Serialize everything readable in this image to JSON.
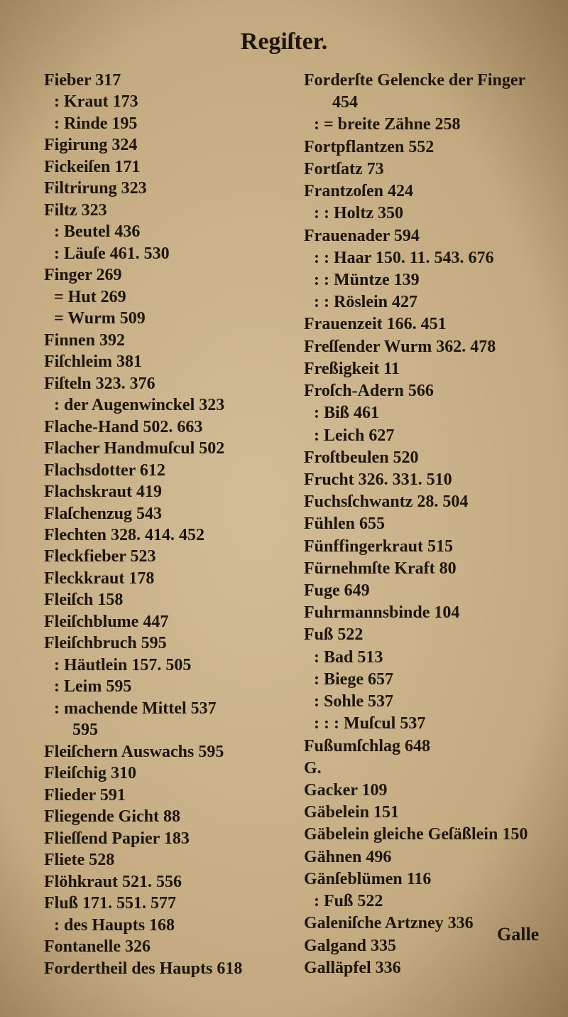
{
  "header": {
    "title": "Regiſter."
  },
  "columns": [
    {
      "entries": [
        "Fieber 317",
        ": Kraut 173",
        ": Rinde 195",
        "Figirung 324",
        "Fickeiſen 171",
        "Filtrirung 323",
        "Filtz 323",
        ": Beutel 436",
        ": Läuſe 461. 530",
        "Finger 269",
        "= Hut 269",
        "= Wurm 509",
        "Finnen 392",
        "Fiſchleim 381",
        "Fiſteln 323. 376",
        ": der Augenwinckel 323",
        "Flache-Hand 502. 663",
        "Flacher Handmuſcul 502",
        "Flachsdotter 612",
        "Flachskraut 419",
        "Flaſchenzug 543",
        "Flechten 328. 414. 452",
        "Fleckfieber 523",
        "Fleckkraut 178",
        "Fleiſch 158",
        "Fleiſchblume 447",
        "Fleiſchbruch 595",
        ": Häutlein 157. 505",
        ": Leim 595",
        ": machende Mittel 537",
        "595",
        "Fleiſchern Auswachs 595",
        "Fleiſchig 310",
        "Flieder 591",
        "Fliegende Gicht 88",
        "Flieſſend Papier 183",
        "Fliete 528",
        "Flöhkraut 521. 556",
        "Fluß 171. 551. 577",
        ": des Haupts 168",
        "Fontanelle 326",
        "Fordertheil des Haupts 618"
      ]
    },
    {
      "entries": [
        "Forderſte Gelencke der Finger",
        "454",
        ": = breite Zähne 258",
        "Fortpflantzen 552",
        "Fortſatz 73",
        "Frantzoſen 424",
        ": : Holtz 350",
        "Frauenader 594",
        ": : Haar 150. 11. 543. 676",
        ": : Müntze 139",
        ": : Röslein 427",
        "Frauenzeit 166. 451",
        "Freſſender Wurm 362. 478",
        "Freßigkeit 11",
        "Froſch-Adern 566",
        ": Biß 461",
        ": Leich 627",
        "Froſtbeulen 520",
        "Frucht 326. 331. 510",
        "Fuchsſchwantz 28. 504",
        "Fühlen 655",
        "Fünffingerkraut 515",
        "Fürnehmſte Kraft 80",
        "Fuge 649",
        "Fuhrmannsbinde 104",
        "Fuß 522",
        ": Bad 513",
        ": Biege 657",
        ": Sohle 537",
        ": : : Muſcul 537",
        "Fußumſchlag 648",
        "G.",
        "Gacker 109",
        "Gäbelein 151",
        "Gäbelein gleiche Geſäßlein 150",
        "Gähnen 496",
        "Gänſeblümen 116",
        ": Fuß 522",
        "Galeniſche Artzney 336",
        "Galgand 335",
        "Galläpfel 336"
      ]
    }
  ],
  "catchword": "Galle"
}
